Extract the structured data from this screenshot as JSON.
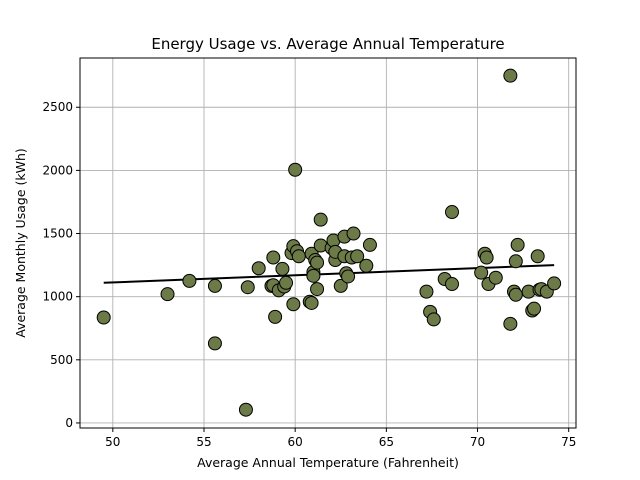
{
  "chart_data": {
    "type": "scatter",
    "title": "Energy Usage vs. Average Annual Temperature",
    "xlabel": "Average Annual Temperature (Fahrenheit)",
    "ylabel": "Average Monthly Usage (kWh)",
    "xlim": [
      48.2,
      75.4
    ],
    "ylim": [
      -40,
      2890
    ],
    "xticks": [
      50,
      55,
      60,
      65,
      70,
      75
    ],
    "yticks": [
      0,
      500,
      1000,
      1500,
      2000,
      2500
    ],
    "grid": true,
    "colors": {
      "point_fill": "#6b7a46",
      "point_edge": "#000000",
      "trend_line": "#000000"
    },
    "trend_line": {
      "x": [
        49.5,
        74.2
      ],
      "y": [
        1110,
        1250
      ]
    },
    "points": [
      [
        49.5,
        835
      ],
      [
        53.0,
        1020
      ],
      [
        54.2,
        1125
      ],
      [
        55.6,
        1085
      ],
      [
        55.6,
        630
      ],
      [
        57.3,
        105
      ],
      [
        57.4,
        1075
      ],
      [
        58.0,
        1225
      ],
      [
        58.7,
        1085
      ],
      [
        58.8,
        1090
      ],
      [
        58.8,
        1310
      ],
      [
        58.9,
        840
      ],
      [
        59.1,
        1050
      ],
      [
        59.3,
        1220
      ],
      [
        59.4,
        1080
      ],
      [
        59.5,
        1110
      ],
      [
        59.8,
        1345
      ],
      [
        59.9,
        1400
      ],
      [
        59.9,
        940
      ],
      [
        60.0,
        2005
      ],
      [
        60.1,
        1360
      ],
      [
        60.2,
        1320
      ],
      [
        60.8,
        960
      ],
      [
        60.9,
        950
      ],
      [
        60.9,
        1340
      ],
      [
        61.0,
        1195
      ],
      [
        61.0,
        1165
      ],
      [
        61.1,
        1290
      ],
      [
        61.2,
        1270
      ],
      [
        61.2,
        1060
      ],
      [
        61.4,
        1405
      ],
      [
        61.4,
        1610
      ],
      [
        62.0,
        1385
      ],
      [
        62.1,
        1445
      ],
      [
        62.2,
        1290
      ],
      [
        62.2,
        1355
      ],
      [
        62.5,
        1085
      ],
      [
        62.7,
        1475
      ],
      [
        62.7,
        1320
      ],
      [
        62.8,
        1185
      ],
      [
        62.9,
        1160
      ],
      [
        63.1,
        1310
      ],
      [
        63.2,
        1500
      ],
      [
        63.4,
        1320
      ],
      [
        63.9,
        1245
      ],
      [
        64.1,
        1410
      ],
      [
        67.2,
        1040
      ],
      [
        67.4,
        880
      ],
      [
        67.6,
        820
      ],
      [
        68.2,
        1140
      ],
      [
        68.6,
        1100
      ],
      [
        68.6,
        1670
      ],
      [
        70.2,
        1190
      ],
      [
        70.4,
        1340
      ],
      [
        70.5,
        1310
      ],
      [
        70.6,
        1100
      ],
      [
        71.0,
        1150
      ],
      [
        71.8,
        2750
      ],
      [
        71.8,
        785
      ],
      [
        72.0,
        1040
      ],
      [
        72.1,
        1280
      ],
      [
        72.1,
        1015
      ],
      [
        72.2,
        1410
      ],
      [
        72.8,
        1040
      ],
      [
        73.0,
        890
      ],
      [
        73.1,
        905
      ],
      [
        73.3,
        1320
      ],
      [
        73.4,
        1055
      ],
      [
        73.5,
        1060
      ],
      [
        73.8,
        1040
      ],
      [
        74.2,
        1105
      ]
    ]
  }
}
